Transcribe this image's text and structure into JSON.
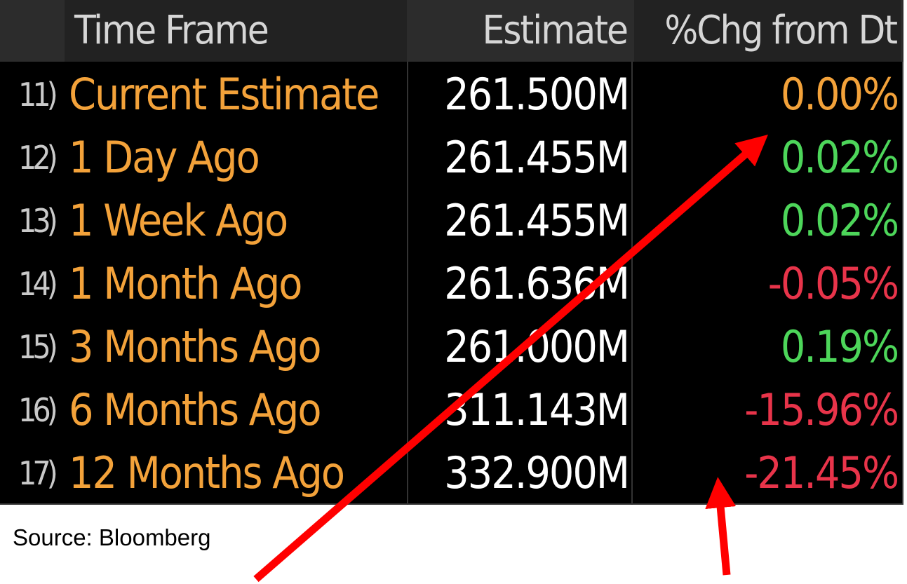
{
  "header": {
    "time_frame": "Time Frame",
    "estimate": "Estimate",
    "chg": "%Chg from Dt"
  },
  "rows": [
    {
      "index": "11)",
      "label": "Current Estimate",
      "estimate": "261.500M",
      "chg": "0.00%",
      "chg_color": "#f3a23a"
    },
    {
      "index": "12)",
      "label": "1 Day Ago",
      "estimate": "261.455M",
      "chg": "0.02%",
      "chg_color": "#4dd65a"
    },
    {
      "index": "13)",
      "label": "1 Week Ago",
      "estimate": "261.455M",
      "chg": "0.02%",
      "chg_color": "#4dd65a"
    },
    {
      "index": "14)",
      "label": "1 Month Ago",
      "estimate": "261.636M",
      "chg": "-0.05%",
      "chg_color": "#e8344a"
    },
    {
      "index": "15)",
      "label": "3 Months Ago",
      "estimate": "261.000M",
      "chg": "0.19%",
      "chg_color": "#4dd65a"
    },
    {
      "index": "16)",
      "label": "6 Months Ago",
      "estimate": "311.143M",
      "chg": "-15.96%",
      "chg_color": "#e8344a"
    },
    {
      "index": "17)",
      "label": "12 Months Ago",
      "estimate": "332.900M",
      "chg": "-21.45%",
      "chg_color": "#e8344a"
    }
  ],
  "source": "Source: Bloomberg",
  "colors": {
    "label": "#f3a23a",
    "positive": "#4dd65a",
    "negative": "#e8344a",
    "arrow": "#ff0000"
  }
}
